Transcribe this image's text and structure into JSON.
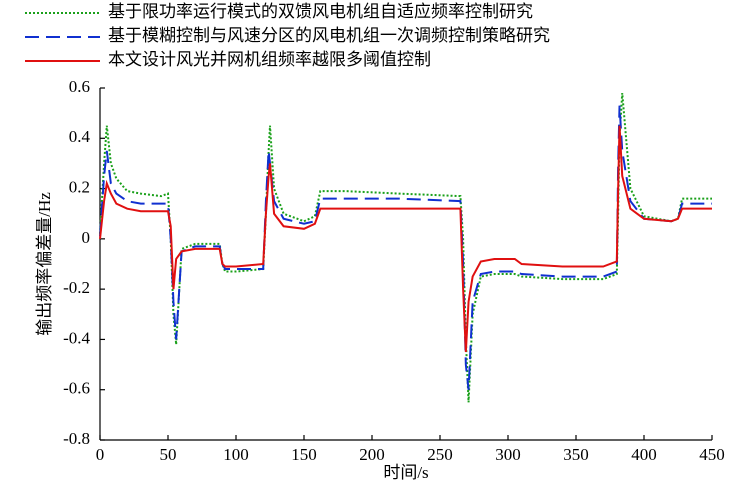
{
  "chart_data": {
    "type": "line",
    "xlabel": "时间/s",
    "ylabel": "输出频率偏差量/Hz",
    "x": [
      0,
      3,
      5,
      8,
      12,
      20,
      30,
      45,
      50,
      52,
      54,
      56,
      60,
      70,
      88,
      90,
      92,
      100,
      120,
      122,
      124,
      125,
      128,
      135,
      150,
      158,
      162,
      180,
      220,
      265,
      267,
      269,
      271,
      274,
      280,
      290,
      305,
      310,
      340,
      370,
      380,
      381,
      382,
      384,
      390,
      400,
      420,
      425,
      428,
      440,
      450
    ],
    "series": [
      {
        "name": "基于限功率运行模式的双馈风电机组自适应频率控制研究",
        "color": "#1aa01a",
        "dash": "dotted",
        "values": [
          0.02,
          0.3,
          0.45,
          0.3,
          0.24,
          0.19,
          0.18,
          0.17,
          0.18,
          0.0,
          -0.3,
          -0.42,
          -0.04,
          -0.02,
          -0.02,
          -0.1,
          -0.13,
          -0.13,
          -0.12,
          0.1,
          0.35,
          0.45,
          0.2,
          0.1,
          0.07,
          0.09,
          0.19,
          0.19,
          0.18,
          0.17,
          0.0,
          -0.4,
          -0.65,
          -0.3,
          -0.15,
          -0.14,
          -0.14,
          -0.15,
          -0.16,
          -0.16,
          -0.14,
          0.1,
          0.4,
          0.58,
          0.2,
          0.09,
          0.07,
          0.08,
          0.16,
          0.16,
          0.16
        ]
      },
      {
        "name": "基于模糊控制与风速分区的风电机组一次调频控制策略研究",
        "color": "#1030d0",
        "dash": "dashed",
        "values": [
          0.01,
          0.25,
          0.35,
          0.22,
          0.18,
          0.15,
          0.14,
          0.14,
          0.14,
          0.0,
          -0.25,
          -0.4,
          -0.05,
          -0.03,
          -0.03,
          -0.1,
          -0.12,
          -0.12,
          -0.12,
          0.15,
          0.35,
          0.3,
          0.15,
          0.08,
          0.06,
          0.07,
          0.16,
          0.16,
          0.16,
          0.15,
          -0.1,
          -0.5,
          -0.6,
          -0.25,
          -0.14,
          -0.13,
          -0.13,
          -0.14,
          -0.15,
          -0.15,
          -0.13,
          0.3,
          0.53,
          0.35,
          0.15,
          0.08,
          0.07,
          0.08,
          0.14,
          0.14,
          0.14
        ]
      },
      {
        "name": "本文设计风光并网机组频率越限多阈值控制",
        "color": "#e01010",
        "dash": "solid",
        "values": [
          0.0,
          0.15,
          0.22,
          0.18,
          0.14,
          0.12,
          0.11,
          0.11,
          0.11,
          0.05,
          -0.2,
          -0.08,
          -0.05,
          -0.04,
          -0.04,
          -0.1,
          -0.11,
          -0.11,
          -0.1,
          0.1,
          0.25,
          0.3,
          0.1,
          0.05,
          0.04,
          0.06,
          0.12,
          0.12,
          0.12,
          0.12,
          -0.2,
          -0.45,
          -0.25,
          -0.15,
          -0.09,
          -0.08,
          -0.08,
          -0.1,
          -0.11,
          -0.11,
          -0.09,
          0.2,
          0.45,
          0.25,
          0.12,
          0.08,
          0.07,
          0.08,
          0.12,
          0.12,
          0.12
        ]
      }
    ],
    "xlim": [
      0,
      450
    ],
    "xticks": [
      0,
      50,
      100,
      150,
      200,
      250,
      300,
      350,
      400,
      450
    ],
    "ylim": [
      -0.8,
      0.6
    ],
    "yticks": [
      -0.8,
      -0.6,
      -0.4,
      -0.2,
      0,
      0.2,
      0.4,
      0.6
    ],
    "grid": false
  }
}
